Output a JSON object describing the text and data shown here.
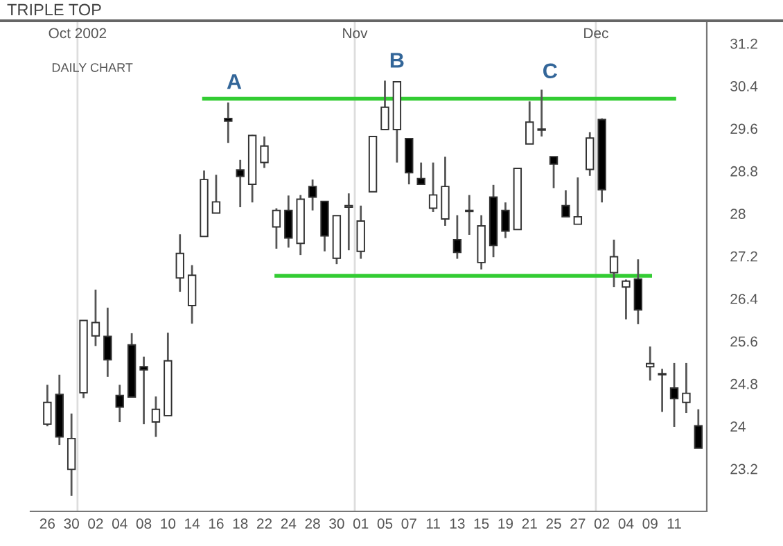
{
  "chart_data": {
    "type": "candlestick",
    "title": "TRIPLE TOP",
    "categories": [
      "26",
      null,
      "30",
      null,
      "02",
      null,
      "04",
      null,
      "08",
      null,
      "10",
      null,
      "14",
      null,
      "16",
      null,
      "18",
      null,
      "22",
      null,
      "24",
      null,
      "28",
      null,
      "30",
      null,
      "01",
      null,
      "05",
      null,
      "07",
      null,
      "11",
      null,
      "13",
      null,
      "15",
      null,
      "19",
      null,
      "21",
      null,
      "25",
      null,
      "27",
      null,
      "02",
      null,
      "04",
      null,
      "09",
      null,
      "11",
      null,
      null
    ],
    "ohlc": [
      [
        24.04,
        24.78,
        24.0,
        24.45
      ],
      [
        24.6,
        24.97,
        23.65,
        23.8
      ],
      [
        23.19,
        24.24,
        22.69,
        23.77
      ],
      [
        24.63,
        25.99,
        24.53,
        25.99
      ],
      [
        25.7,
        26.57,
        25.51,
        25.95
      ],
      [
        25.69,
        26.23,
        24.93,
        25.25
      ],
      [
        24.58,
        24.78,
        24.08,
        24.36
      ],
      [
        25.53,
        25.75,
        24.55,
        24.55
      ],
      [
        25.12,
        25.31,
        24.04,
        25.06
      ],
      [
        24.08,
        24.56,
        23.8,
        24.32
      ],
      [
        24.2,
        25.76,
        24.2,
        25.23
      ],
      [
        26.79,
        27.61,
        26.53,
        27.25
      ],
      [
        26.27,
        27.03,
        25.93,
        26.84
      ],
      [
        27.57,
        28.81,
        27.57,
        28.64
      ],
      [
        28.01,
        28.73,
        28.01,
        28.22
      ],
      [
        29.79,
        30.09,
        29.33,
        29.74
      ],
      [
        28.82,
        29.01,
        28.12,
        28.7
      ],
      [
        28.55,
        29.48,
        28.21,
        29.47
      ],
      [
        28.96,
        29.45,
        28.86,
        29.27
      ],
      [
        27.75,
        28.1,
        27.34,
        28.06
      ],
      [
        28.06,
        28.34,
        27.36,
        27.54
      ],
      [
        27.44,
        28.35,
        27.22,
        28.27
      ],
      [
        28.51,
        28.64,
        28.06,
        28.31
      ],
      [
        28.23,
        28.23,
        27.29,
        27.58
      ],
      [
        27.16,
        27.96,
        27.05,
        27.96
      ],
      [
        28.12,
        28.38,
        27.31,
        28.15
      ],
      [
        27.29,
        28.15,
        27.15,
        27.86
      ],
      [
        28.41,
        29.46,
        28.41,
        29.45
      ],
      [
        29.58,
        30.5,
        29.58,
        30.0
      ],
      [
        29.58,
        30.49,
        28.96,
        30.48
      ],
      [
        29.41,
        29.42,
        28.55,
        28.77
      ],
      [
        28.66,
        28.96,
        28.55,
        28.55
      ],
      [
        28.1,
        28.96,
        28.03,
        28.35
      ],
      [
        27.9,
        29.07,
        27.77,
        28.51
      ],
      [
        27.51,
        27.97,
        27.15,
        27.27
      ],
      [
        28.06,
        28.35,
        27.6,
        28.04
      ],
      [
        27.08,
        27.97,
        26.95,
        27.77
      ],
      [
        28.31,
        28.54,
        27.18,
        27.4
      ],
      [
        28.06,
        28.21,
        27.54,
        27.67
      ],
      [
        27.7,
        28.86,
        27.7,
        28.85
      ],
      [
        29.31,
        30.11,
        29.31,
        29.72
      ],
      [
        29.57,
        30.33,
        29.45,
        29.59
      ],
      [
        29.07,
        29.07,
        28.48,
        28.93
      ],
      [
        28.15,
        28.44,
        27.94,
        27.94
      ],
      [
        27.8,
        28.68,
        27.8,
        27.94
      ],
      [
        28.83,
        29.53,
        28.71,
        29.42
      ],
      [
        29.77,
        29.79,
        28.21,
        28.45
      ],
      [
        26.89,
        27.51,
        26.62,
        27.19
      ],
      [
        26.62,
        26.76,
        26.01,
        26.73
      ],
      [
        26.77,
        27.14,
        25.92,
        26.19
      ],
      [
        25.12,
        25.5,
        24.86,
        25.18
      ],
      [
        24.99,
        25.08,
        24.27,
        24.97
      ],
      [
        24.72,
        25.19,
        23.99,
        24.52
      ],
      [
        24.45,
        25.19,
        24.25,
        24.62
      ],
      [
        24.01,
        24.32,
        23.59,
        23.59
      ]
    ],
    "series": [
      {
        "type": "line",
        "color": "#33cc33",
        "values": [
          null,
          null,
          null,
          null,
          null,
          null,
          null,
          null,
          null,
          null,
          null,
          null,
          null,
          30.16,
          30.16,
          30.16,
          30.16,
          30.16,
          30.16,
          30.16,
          30.16,
          30.16,
          30.16,
          30.16,
          30.16,
          30.16,
          30.16,
          30.16,
          30.16,
          30.16,
          30.16,
          30.16,
          30.16,
          30.16,
          30.16,
          30.16,
          30.16,
          30.16,
          30.16,
          30.16,
          30.16,
          30.16,
          30.16,
          30.16,
          30.16,
          30.16,
          30.16,
          30.16,
          30.16,
          30.16,
          30.16,
          30.16,
          30.16,
          null,
          null
        ]
      },
      {
        "type": "line",
        "color": "#33cc33",
        "values": [
          null,
          null,
          null,
          null,
          null,
          null,
          null,
          null,
          null,
          null,
          null,
          null,
          null,
          null,
          null,
          null,
          null,
          null,
          null,
          26.83,
          26.83,
          26.83,
          26.83,
          26.83,
          26.83,
          26.83,
          26.83,
          26.83,
          26.83,
          26.83,
          26.83,
          26.83,
          26.83,
          26.83,
          26.83,
          26.83,
          26.83,
          26.83,
          26.83,
          26.83,
          26.83,
          26.83,
          26.83,
          26.83,
          26.83,
          26.83,
          26.83,
          26.83,
          26.83,
          26.83,
          26.83,
          null,
          null,
          null,
          null
        ]
      }
    ],
    "ylim": [
      22.4,
      31.6
    ],
    "yticks": [
      23.2,
      24,
      24.8,
      25.6,
      26.4,
      27.2,
      28,
      28.8,
      29.6,
      30.4,
      31.2
    ],
    "annotations": [
      "DAILY CHART",
      "Oct 2002",
      "Nov",
      "Dec",
      "A",
      "B",
      "C"
    ],
    "legend": false
  }
}
